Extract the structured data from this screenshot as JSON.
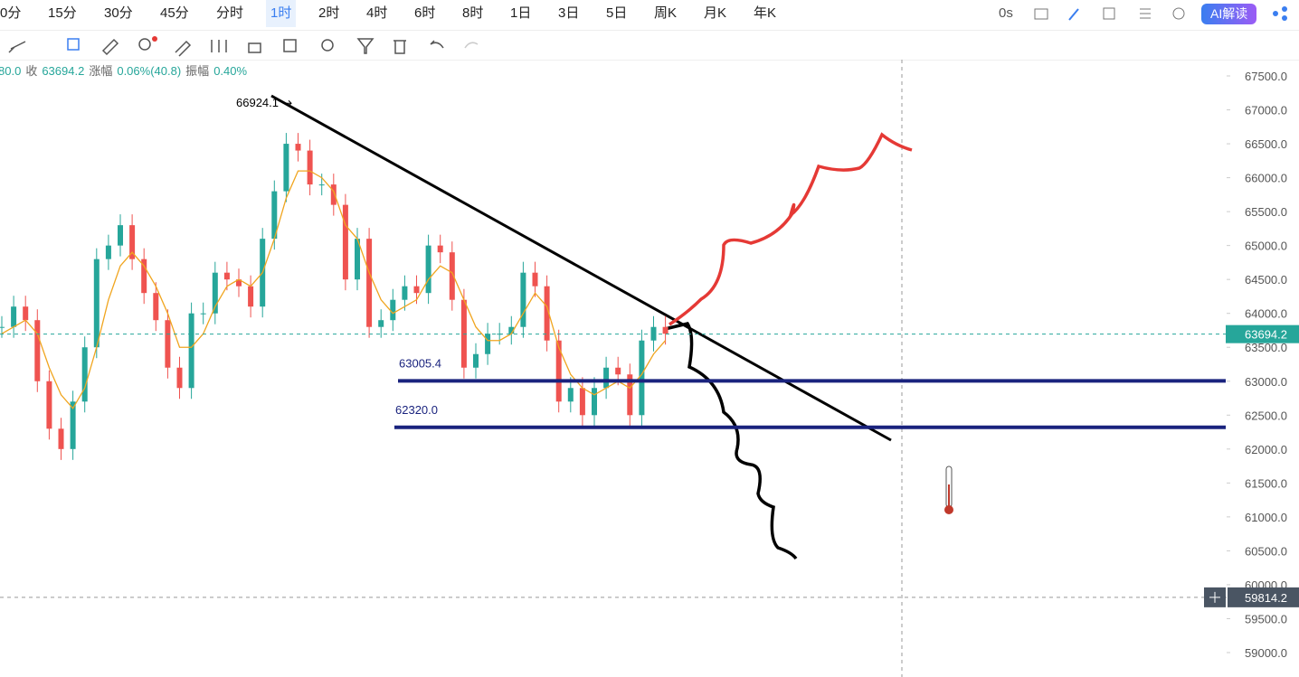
{
  "toolbar": {
    "intervals": [
      "0分",
      "15分",
      "30分",
      "45分",
      "分时",
      "1时",
      "2时",
      "4时",
      "6时",
      "8时",
      "1日",
      "3日",
      "5日",
      "周K",
      "月K",
      "年K"
    ],
    "countdown": "0s",
    "ai_button": "AI解读"
  },
  "info": [
    "80.0",
    "收",
    "63694.2",
    "涨幅",
    "0.06%(40.8)",
    "振幅",
    "0.40%"
  ],
  "chart_data": {
    "type": "candlestick",
    "ylim": [
      58640,
      67740
    ],
    "yticks": [
      {
        "value": 59000,
        "label": "59000.0"
      },
      {
        "value": 59500,
        "label": "59500.0"
      },
      {
        "value": 60000,
        "label": "60000.0"
      },
      {
        "value": 60500,
        "label": "60500.0"
      },
      {
        "value": 61000,
        "label": "61000.0"
      },
      {
        "value": 61500,
        "label": "61500.0"
      },
      {
        "value": 62000,
        "label": "62000.0"
      },
      {
        "value": 62500,
        "label": "62500.0"
      },
      {
        "value": 63000,
        "label": "63000.0"
      },
      {
        "value": 63500,
        "label": "63500.0"
      },
      {
        "value": 64000,
        "label": "64000.0"
      },
      {
        "value": 64500,
        "label": "64500.0"
      },
      {
        "value": 65000,
        "label": "65000.0"
      },
      {
        "value": 65500,
        "label": "65500.0"
      },
      {
        "value": 66000,
        "label": "66000.0"
      },
      {
        "value": 66500,
        "label": "66500.0"
      },
      {
        "value": 67000,
        "label": "67000.0"
      },
      {
        "value": 67500,
        "label": "67500.0"
      }
    ],
    "values": [
      63800,
      64100,
      63900,
      63000,
      62300,
      62000,
      62700,
      63500,
      64800,
      65000,
      65300,
      64800,
      64300,
      63900,
      63200,
      62900,
      64000,
      64000,
      64600,
      64500,
      64400,
      64100,
      65100,
      65800,
      66500,
      66400,
      65900,
      65900,
      65600,
      64500,
      65100,
      63800,
      63900,
      64200,
      64400,
      64300,
      65000,
      64900,
      64200,
      63200,
      63400,
      63700,
      63700,
      63800,
      64600,
      64400,
      63600,
      62700,
      62900,
      62500,
      62900,
      63200,
      63100,
      62500,
      63600,
      63800,
      63700
    ],
    "ma_values": [
      63700,
      63800,
      63900,
      63700,
      63200,
      62800,
      62600,
      62900,
      63500,
      64200,
      64700,
      64900,
      64700,
      64400,
      64000,
      63500,
      63500,
      63700,
      64100,
      64400,
      64500,
      64400,
      64600,
      65100,
      65700,
      66100,
      66100,
      66000,
      65800,
      65300,
      65100,
      64600,
      64200,
      64000,
      64100,
      64200,
      64500,
      64700,
      64600,
      64200,
      63800,
      63600,
      63600,
      63700,
      64000,
      64300,
      64100,
      63500,
      63100,
      62900,
      62800,
      62900,
      63000,
      62900,
      63100,
      63400,
      63600
    ],
    "up_color": "#26a69a",
    "down_color": "#ef5350",
    "ma_color": "#f0a51f",
    "high": {
      "value": 66924.1,
      "label": "66924.1"
    },
    "levels": [
      {
        "value": 63005.4,
        "label": "63005.4"
      },
      {
        "value": 62320.0,
        "label": "62320.0"
      }
    ],
    "price": {
      "value": 63694.2,
      "label": "63694.2"
    },
    "crosshair": {
      "value": 59814.2,
      "label": "59814.2"
    }
  }
}
